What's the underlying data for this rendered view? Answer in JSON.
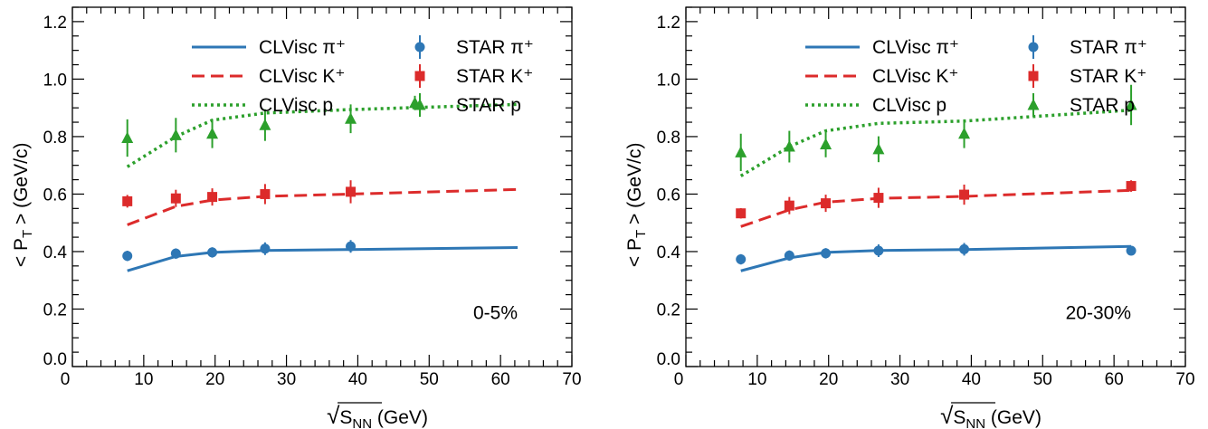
{
  "chart_data": [
    {
      "type": "line",
      "panel_label": "0-5%",
      "xlabel_prefix": "√",
      "xlabel_var": "S",
      "xlabel_sub": "NN",
      "xlabel_unit": "(GeV)",
      "ylabel_lt": "<",
      "ylabel_var": "P",
      "ylabel_sub": "T",
      "ylabel_gt": ">",
      "ylabel_unit": "(GeV/c)",
      "xlim": [
        0,
        70
      ],
      "ylim": [
        0,
        1.25
      ],
      "x_ticks": [
        "0",
        "10",
        "20",
        "30",
        "40",
        "50",
        "60",
        "70"
      ],
      "y_ticks": [
        "0.0",
        "0.2",
        "0.4",
        "0.6",
        "0.8",
        "1.0",
        "1.2"
      ],
      "legend_position": "top-right",
      "series": [
        {
          "name": "CLVisc π⁺",
          "kind": "model",
          "style": "solid",
          "color": "#2e77b5",
          "x": [
            7.7,
            14.5,
            19.6,
            27,
            39,
            62.4
          ],
          "y": [
            0.333,
            0.383,
            0.397,
            0.404,
            0.407,
            0.414
          ]
        },
        {
          "name": "CLVisc K⁺",
          "kind": "model",
          "style": "dashed",
          "color": "#dc2b2b",
          "x": [
            7.7,
            14.5,
            19.6,
            27,
            39,
            62.4
          ],
          "y": [
            0.493,
            0.557,
            0.579,
            0.592,
            0.6,
            0.616
          ]
        },
        {
          "name": "CLVisc p",
          "kind": "model",
          "style": "dotted",
          "color": "#2ca02c",
          "x": [
            7.7,
            14.5,
            19.6,
            27,
            39,
            62.4
          ],
          "y": [
            0.695,
            0.8,
            0.857,
            0.882,
            0.894,
            0.912
          ]
        },
        {
          "name": "STAR π⁺",
          "kind": "data",
          "marker": "circle",
          "color": "#2e77b5",
          "x": [
            7.7,
            14.5,
            19.6,
            27,
            39
          ],
          "y": [
            0.385,
            0.393,
            0.397,
            0.41,
            0.418
          ],
          "err": [
            0.018,
            0.018,
            0.018,
            0.022,
            0.022
          ]
        },
        {
          "name": "STAR K⁺",
          "kind": "data",
          "marker": "square",
          "color": "#dc2b2b",
          "x": [
            7.7,
            14.5,
            19.6,
            27,
            39
          ],
          "y": [
            0.575,
            0.585,
            0.59,
            0.6,
            0.608
          ],
          "err": [
            0.022,
            0.03,
            0.03,
            0.035,
            0.04
          ]
        },
        {
          "name": "STAR p",
          "kind": "data",
          "marker": "triangle",
          "color": "#2ca02c",
          "x": [
            7.7,
            14.5,
            19.6,
            27,
            39,
            48
          ],
          "y": [
            0.795,
            0.805,
            0.81,
            0.84,
            0.862,
            0.917
          ],
          "err": [
            0.065,
            0.06,
            0.05,
            0.055,
            0.05,
            0.025
          ]
        }
      ]
    },
    {
      "type": "line",
      "panel_label": "20-30%",
      "xlabel_prefix": "√",
      "xlabel_var": "S",
      "xlabel_sub": "NN",
      "xlabel_unit": "(GeV)",
      "ylabel_lt": "<",
      "ylabel_var": "P",
      "ylabel_sub": "T",
      "ylabel_gt": ">",
      "ylabel_unit": "(GeV/c)",
      "xlim": [
        0,
        70
      ],
      "ylim": [
        0,
        1.25
      ],
      "x_ticks": [
        "0",
        "10",
        "20",
        "30",
        "40",
        "50",
        "60",
        "70"
      ],
      "y_ticks": [
        "0.0",
        "0.2",
        "0.4",
        "0.6",
        "0.8",
        "1.0",
        "1.2"
      ],
      "legend_position": "top-right",
      "series": [
        {
          "name": "CLVisc π⁺",
          "kind": "model",
          "style": "solid",
          "color": "#2e77b5",
          "x": [
            7.7,
            14.5,
            19.6,
            27,
            39,
            62.4
          ],
          "y": [
            0.333,
            0.378,
            0.397,
            0.404,
            0.407,
            0.418
          ]
        },
        {
          "name": "CLVisc K⁺",
          "kind": "model",
          "style": "dashed",
          "color": "#dc2b2b",
          "x": [
            7.7,
            14.5,
            19.6,
            27,
            39,
            62.4
          ],
          "y": [
            0.487,
            0.545,
            0.572,
            0.585,
            0.592,
            0.613
          ]
        },
        {
          "name": "CLVisc p",
          "kind": "model",
          "style": "dotted",
          "color": "#2ca02c",
          "x": [
            7.7,
            14.5,
            19.6,
            27,
            39,
            62.4
          ],
          "y": [
            0.663,
            0.765,
            0.82,
            0.846,
            0.854,
            0.892
          ]
        },
        {
          "name": "STAR π⁺",
          "kind": "data",
          "marker": "circle",
          "color": "#2e77b5",
          "x": [
            7.7,
            14.5,
            19.6,
            27,
            39,
            62.4
          ],
          "y": [
            0.373,
            0.386,
            0.394,
            0.403,
            0.408,
            0.403
          ],
          "err": [
            0.018,
            0.018,
            0.018,
            0.022,
            0.022,
            0.01
          ]
        },
        {
          "name": "STAR K⁺",
          "kind": "data",
          "marker": "square",
          "color": "#dc2b2b",
          "x": [
            7.7,
            14.5,
            19.6,
            27,
            39,
            62.4
          ],
          "y": [
            0.533,
            0.56,
            0.568,
            0.587,
            0.598,
            0.628
          ],
          "err": [
            0.018,
            0.03,
            0.03,
            0.035,
            0.035,
            0.02
          ]
        },
        {
          "name": "STAR p",
          "kind": "data",
          "marker": "triangle",
          "color": "#2ca02c",
          "x": [
            7.7,
            14.5,
            19.6,
            27,
            39,
            62.4
          ],
          "y": [
            0.745,
            0.765,
            0.773,
            0.756,
            0.81,
            0.91
          ],
          "err": [
            0.065,
            0.055,
            0.045,
            0.045,
            0.05,
            0.07
          ]
        }
      ]
    }
  ]
}
